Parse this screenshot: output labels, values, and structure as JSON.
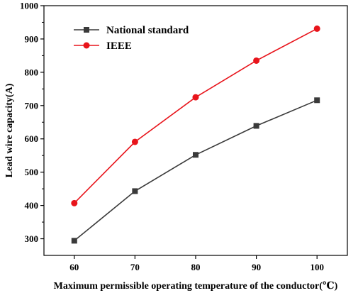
{
  "chart_data": {
    "type": "line",
    "xlabel": "Maximum permissible operating temperature of the conductor(℃)",
    "ylabel": "Lead wire capacity(A)",
    "x": [
      60,
      70,
      80,
      90,
      100
    ],
    "xlim": [
      55,
      105
    ],
    "ylim": [
      250,
      1000
    ],
    "xticks": [
      60,
      70,
      80,
      90,
      100
    ],
    "yticks": [
      300,
      400,
      500,
      600,
      700,
      800,
      900,
      1000
    ],
    "grid": false,
    "legend": "top-left",
    "series": [
      {
        "name": "National standard",
        "marker": "square",
        "color": "#3a3a3a",
        "values": [
          294,
          443,
          552,
          639,
          716
        ]
      },
      {
        "name": "IEEE",
        "marker": "circle",
        "color": "#e8141b",
        "values": [
          407,
          591,
          725,
          835,
          931
        ]
      }
    ]
  }
}
